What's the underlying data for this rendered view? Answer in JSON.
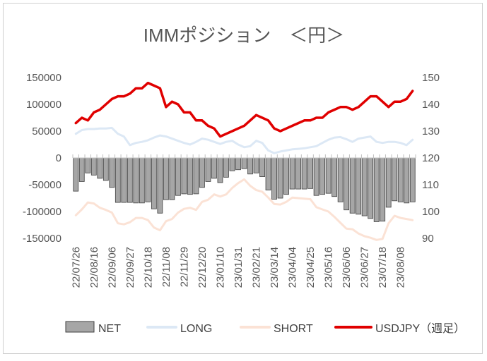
{
  "chart_data": {
    "type": "bar+line",
    "title": "IMMポジション　＜円＞",
    "left_axis": {
      "ticks": [
        "150000",
        "100000",
        "50000",
        "0",
        "-50000",
        "-100000",
        "-150000"
      ],
      "min": -150000,
      "max": 150000
    },
    "right_axis": {
      "ticks": [
        "150",
        "140",
        "130",
        "120",
        "110",
        "100",
        "90"
      ],
      "min": 90,
      "max": 150
    },
    "x_tick_labels": [
      "22/07/26",
      "22/08/16",
      "22/09/06",
      "22/09/27",
      "22/10/18",
      "22/11/08",
      "22/11/29",
      "22/12/20",
      "23/01/10",
      "23/01/31",
      "23/02/21",
      "23/03/14",
      "23/04/04",
      "23/04/25",
      "23/05/16",
      "23/06/06",
      "23/06/27",
      "23/07/18",
      "23/08/08"
    ],
    "series": [
      {
        "name": "NET",
        "type": "bar",
        "axis": "left",
        "color": "#a6a6a6",
        "values": [
          -62000,
          -44000,
          -28000,
          -32000,
          -38000,
          -42000,
          -55000,
          -83000,
          -83000,
          -83000,
          -84000,
          -84000,
          -82000,
          -95000,
          -103000,
          -78000,
          -78000,
          -70000,
          -67000,
          -68000,
          -67000,
          -55000,
          -44000,
          -38000,
          -46000,
          -36000,
          -24000,
          -22000,
          -20000,
          -30000,
          -28000,
          -35000,
          -60000,
          -77000,
          -75000,
          -68000,
          -58000,
          -58000,
          -58000,
          -57000,
          -70000,
          -68000,
          -66000,
          -72000,
          -82000,
          -97000,
          -103000,
          -105000,
          -108000,
          -113000,
          -119000,
          -118000,
          -92000,
          -80000,
          -82000,
          -84000,
          -82000
        ]
      },
      {
        "name": "LONG",
        "type": "line",
        "axis": "left",
        "color": "#dce8f5",
        "values": [
          45000,
          52000,
          54000,
          54000,
          55000,
          55000,
          56000,
          45000,
          40000,
          24000,
          28000,
          30000,
          33000,
          38000,
          42000,
          40000,
          36000,
          32000,
          28000,
          25000,
          30000,
          36000,
          34000,
          30000,
          26000,
          30000,
          32000,
          25000,
          20000,
          22000,
          32000,
          28000,
          14000,
          9000,
          12000,
          14000,
          16000,
          17000,
          18000,
          20000,
          22000,
          28000,
          34000,
          38000,
          39000,
          35000,
          30000,
          36000,
          38000,
          40000,
          30000,
          28000,
          30000,
          30000,
          28000,
          24000,
          34000
        ]
      },
      {
        "name": "SHORT",
        "type": "line",
        "axis": "left",
        "color": "#fbe2d5",
        "values": [
          -107000,
          -96000,
          -83000,
          -85000,
          -93000,
          -97000,
          -102000,
          -122000,
          -124000,
          -120000,
          -112000,
          -112000,
          -116000,
          -130000,
          -135000,
          -118000,
          -114000,
          -102000,
          -95000,
          -93000,
          -97000,
          -82000,
          -78000,
          -68000,
          -72000,
          -68000,
          -56000,
          -47000,
          -40000,
          -52000,
          -60000,
          -63000,
          -74000,
          -86000,
          -87000,
          -82000,
          -74000,
          -75000,
          -76000,
          -77000,
          -92000,
          -96000,
          -100000,
          -110000,
          -121000,
          -132000,
          -133000,
          -141000,
          -146000,
          -149000,
          -153000,
          -151000,
          -122000,
          -108000,
          -112000,
          -114000,
          -116000
        ]
      },
      {
        "name": "USDJPY（週足）",
        "type": "line",
        "axis": "right",
        "color": "#e00000",
        "values": [
          133,
          135,
          134,
          137,
          138,
          140,
          142,
          143,
          143,
          144,
          146,
          146,
          148,
          147,
          146,
          139,
          141,
          140,
          137,
          137,
          134,
          134,
          132,
          131,
          128,
          129,
          130,
          131,
          132,
          134,
          136,
          135,
          134,
          131,
          130,
          131,
          132,
          133,
          134,
          134,
          135,
          135,
          137,
          138,
          139,
          139,
          138,
          139,
          141,
          143,
          143,
          141,
          139,
          141,
          141,
          142,
          145
        ]
      }
    ],
    "legend_position": "bottom",
    "grid": false
  }
}
